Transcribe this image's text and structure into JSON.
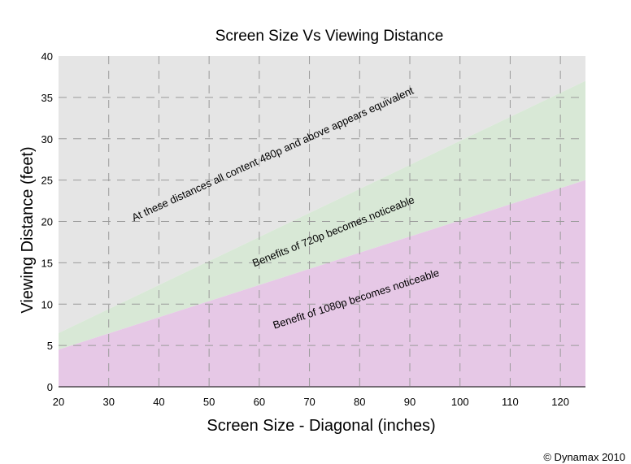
{
  "chart_data": {
    "type": "area",
    "title": "Screen Size Vs Viewing Distance",
    "xlabel": "Screen Size - Diagonal (inches)",
    "ylabel": "Viewing Distance (feet)",
    "xlim": [
      20,
      125
    ],
    "ylim": [
      0,
      40
    ],
    "x_ticks": [
      20,
      30,
      40,
      50,
      60,
      70,
      80,
      90,
      100,
      110,
      120
    ],
    "y_ticks": [
      0,
      5,
      10,
      15,
      20,
      25,
      30,
      35,
      40
    ],
    "grid": true,
    "series": [
      {
        "name": "At these distances all content 480p and above appears equivalent",
        "color": "#e5e5e5",
        "x": [
          20,
          125
        ],
        "y_lower": [
          6.5,
          37
        ],
        "y_upper": [
          40,
          40
        ]
      },
      {
        "name": "Benefits of 720p becomes noticeable",
        "color": "#d8e8d6",
        "x": [
          20,
          125
        ],
        "y_lower": [
          4.5,
          25
        ],
        "y_upper": [
          6.5,
          37
        ]
      },
      {
        "name": "Benefit of 1080p becomes noticeable",
        "color": "#e6c8e6",
        "x": [
          20,
          125
        ],
        "y_lower": [
          0,
          0
        ],
        "y_upper": [
          4.5,
          25
        ]
      }
    ],
    "annotations": [
      {
        "text": "At these distances all content 480p and above appears equivalent",
        "x": 35,
        "y": 20
      },
      {
        "text": "Benefits of 720p becomes noticeable",
        "x": 59,
        "y": 14.5
      },
      {
        "text": "Benefit of 1080p becomes noticeable",
        "x": 63,
        "y": 7
      }
    ]
  },
  "copyright": "© Dynamax 2010"
}
